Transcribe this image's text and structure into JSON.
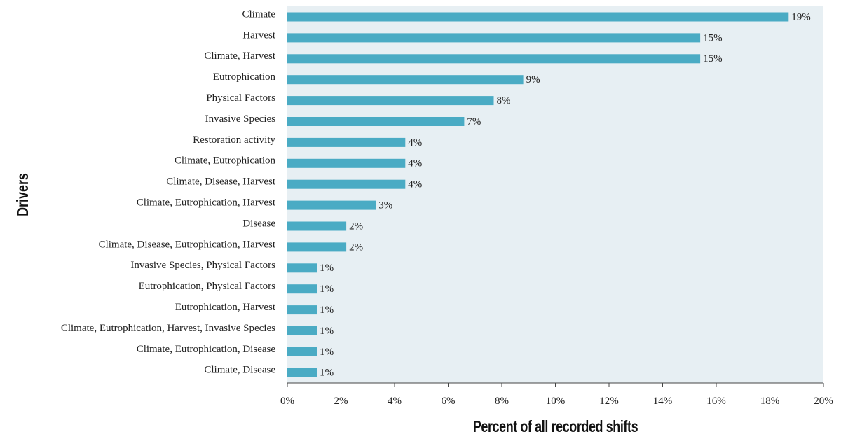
{
  "chart_data": {
    "type": "bar",
    "orientation": "horizontal",
    "categories": [
      "Climate",
      "Harvest",
      "Climate, Harvest",
      "Eutrophication",
      "Physical Factors",
      "Invasive Species",
      "Restoration activity",
      "Climate, Eutrophication",
      "Climate, Disease, Harvest",
      "Climate, Eutrophication, Harvest",
      "Disease",
      "Climate, Disease, Eutrophication, Harvest",
      "Invasive Species, Physical Factors",
      "Eutrophication, Physical Factors",
      "Eutrophication, Harvest",
      "Climate, Eutrophication, Harvest, Invasive Species",
      "Climate, Eutrophication, Disease",
      "Climate, Disease"
    ],
    "values": [
      18.7,
      15.4,
      15.4,
      8.8,
      7.7,
      6.6,
      4.4,
      4.4,
      4.4,
      3.3,
      2.2,
      2.2,
      1.1,
      1.1,
      1.1,
      1.1,
      1.1,
      1.1
    ],
    "data_labels": [
      "19%",
      "15%",
      "15%",
      "9%",
      "8%",
      "7%",
      "4%",
      "4%",
      "4%",
      "3%",
      "2%",
      "2%",
      "1%",
      "1%",
      "1%",
      "1%",
      "1%",
      "1%"
    ],
    "x_ticks": [
      "0%",
      "2%",
      "4%",
      "6%",
      "8%",
      "10%",
      "12%",
      "14%",
      "16%",
      "18%",
      "20%"
    ],
    "xlim": [
      0,
      20
    ],
    "xlabel": "Percent of all recorded shifts",
    "ylabel": "Drivers",
    "grid": false,
    "colors": {
      "bar": "#4aabc4",
      "plot_bg": "#e7eff3"
    }
  }
}
